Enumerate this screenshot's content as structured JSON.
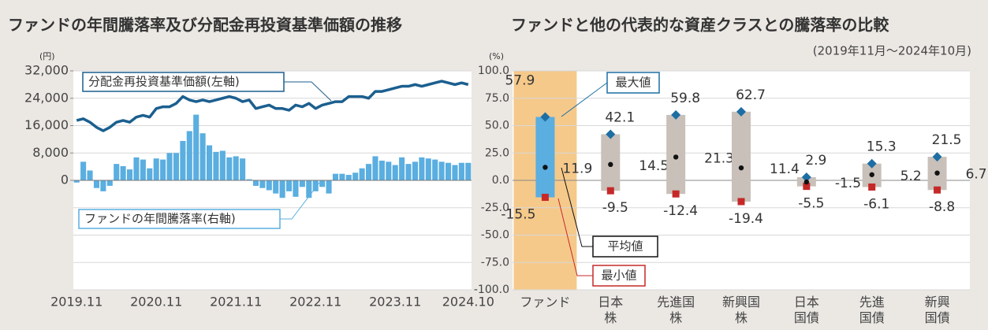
{
  "chart_data": [
    {
      "type": "bar-line",
      "title": "ファンドの年間騰落率及び分配金再投資基準価額の推移",
      "y_unit": "(円)",
      "categories": [
        "2019.11",
        null,
        null,
        null,
        null,
        null,
        null,
        null,
        null,
        null,
        null,
        null,
        "2020.11",
        null,
        null,
        null,
        null,
        null,
        null,
        null,
        null,
        null,
        null,
        null,
        "2021.11",
        null,
        null,
        null,
        null,
        null,
        null,
        null,
        null,
        null,
        null,
        null,
        "2022.11",
        null,
        null,
        null,
        null,
        null,
        null,
        null,
        null,
        null,
        null,
        null,
        "2023.11",
        null,
        null,
        null,
        null,
        null,
        null,
        null,
        null,
        null,
        null,
        "2024.10"
      ],
      "ylim": [
        -32000,
        32000
      ],
      "yticks": [
        {
          "value": 0,
          "label": "0"
        },
        {
          "value": 8000,
          "label": "8,000"
        },
        {
          "value": 16000,
          "label": "16,000"
        },
        {
          "value": 24000,
          "label": "24,000"
        },
        {
          "value": 32000,
          "label": "32,000"
        }
      ],
      "y2lim": [
        -100,
        100
      ],
      "y2ticks": [
        100,
        75,
        50,
        25,
        0,
        -25,
        -50,
        -75,
        -100
      ],
      "series": [
        {
          "name": "ファンドの年間騰落率(右軸)",
          "type": "bar",
          "axis": "y2",
          "color": "#5aaee0",
          "values": [
            -2,
            17,
            9,
            -7,
            -10,
            -5,
            15,
            13,
            10,
            21,
            19,
            11,
            20,
            19,
            25,
            25,
            36,
            45,
            60,
            43,
            32,
            26,
            27,
            21,
            22,
            20,
            1,
            -5,
            -7,
            -9,
            -12,
            -16,
            -10,
            -15,
            -6,
            -16,
            -10,
            -6,
            -12,
            6,
            6,
            5,
            7,
            11,
            15,
            22,
            18,
            17,
            14,
            21,
            15,
            17,
            21,
            20,
            19,
            17,
            16,
            14,
            16,
            16
          ]
        },
        {
          "name": "分配金再投資基準価額(左軸)",
          "type": "line",
          "color": "#1b5f8f",
          "values": [
            17500,
            18000,
            17000,
            15500,
            14500,
            15500,
            17000,
            17500,
            17000,
            18500,
            19000,
            18500,
            21000,
            21500,
            21500,
            22500,
            24500,
            23500,
            23000,
            23500,
            23000,
            23500,
            24000,
            24500,
            24000,
            23000,
            23500,
            21000,
            21500,
            22000,
            21000,
            21000,
            20500,
            22000,
            21500,
            22500,
            21000,
            22000,
            22500,
            23000,
            23000,
            24500,
            24500,
            24500,
            24000,
            26000,
            26000,
            26500,
            27000,
            27500,
            27500,
            28000,
            27500,
            28000,
            28500,
            29000,
            28500,
            28000,
            28500,
            28000
          ]
        }
      ]
    },
    {
      "type": "range",
      "title": "ファンドと他の代表的な資産クラスとの騰落率の比較",
      "subtitle": "(2019年11月～2024年10月)",
      "y_unit": "(%)",
      "categories": [
        "ファンド",
        "日本\n株",
        "先進国\n株",
        "新興国\n株",
        "日本\n国債",
        "先進\n国債",
        "新興\n国債"
      ],
      "highlight": "#f5c98a",
      "ylim": [
        -100,
        100
      ],
      "yticks": [
        {
          "value": 100,
          "label": "100.0"
        },
        {
          "value": 75,
          "label": "75.0"
        },
        {
          "value": 50,
          "label": "50.0"
        },
        {
          "value": 25,
          "label": "25.0"
        },
        {
          "value": 0,
          "label": "0.0"
        },
        {
          "value": -25,
          "label": "-25.0"
        },
        {
          "value": -50,
          "label": "-50.0"
        },
        {
          "value": -75,
          "label": "-75.0"
        },
        {
          "value": -100,
          "label": "-100.0"
        }
      ],
      "grid": true,
      "box_colors": [
        "#5aaee0",
        "#c8c0b9"
      ],
      "series": [
        {
          "name": "最大値",
          "color": "#1d6ea3",
          "values": [
            57.9,
            42.1,
            59.8,
            62.7,
            2.9,
            15.3,
            21.5
          ]
        },
        {
          "name": "平均値",
          "color": "#111111",
          "values": [
            11.9,
            14.5,
            21.3,
            11.4,
            -1.5,
            5.2,
            6.7
          ]
        },
        {
          "name": "最小値",
          "color": "#c62828",
          "values": [
            -15.5,
            -9.5,
            -12.4,
            -19.4,
            -5.5,
            -6.1,
            -8.8
          ]
        }
      ]
    }
  ]
}
